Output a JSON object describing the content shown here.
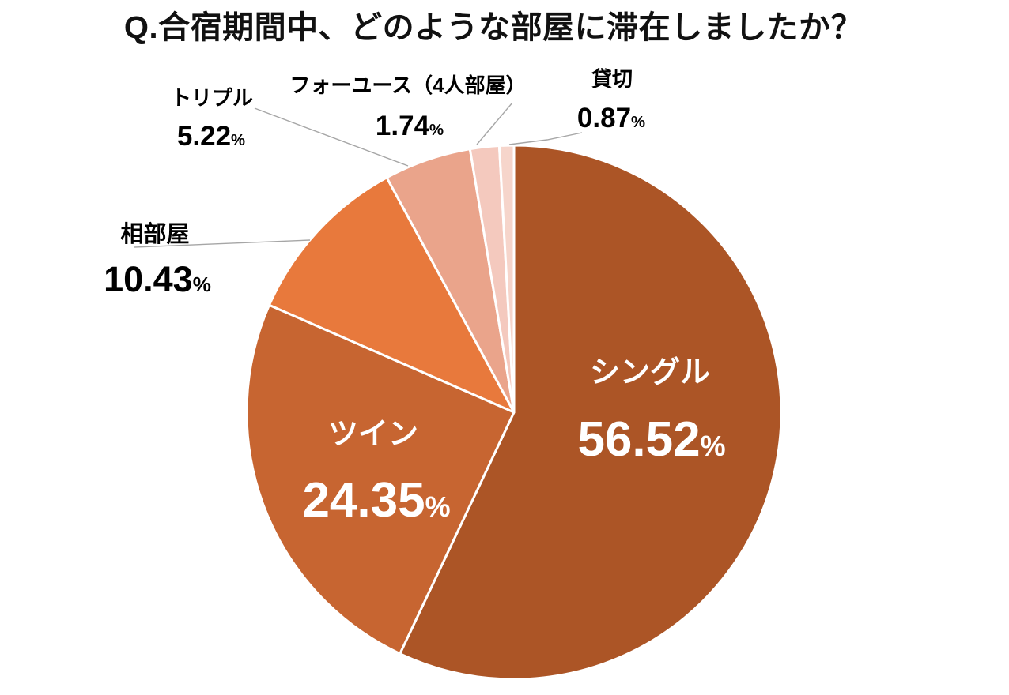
{
  "title": "Q.合宿期間中、どのような部屋に滞在しましたか？",
  "chart_data": {
    "type": "pie",
    "title": "Q.合宿期間中、どのような部屋に滞在しましたか？",
    "unit": "%",
    "start_angle_deg": 0,
    "direction": "clockwise",
    "legend": "none",
    "background_color": "#FFFFFF",
    "divider_color": "#FFFFFF",
    "leader_line_color": "#A6A6A6",
    "slices": [
      {
        "slug": "single",
        "label": "シングル",
        "value": 56.52,
        "value_text": "56.52",
        "color": "#AC5526",
        "label_color": "#FFFFFF",
        "label_position": "inside"
      },
      {
        "slug": "twin",
        "label": "ツイン",
        "value": 24.35,
        "value_text": "24.35",
        "color": "#C76531",
        "label_color": "#FFFFFF",
        "label_position": "inside"
      },
      {
        "slug": "shared-room",
        "label": "相部屋",
        "value": 10.43,
        "value_text": "10.43",
        "color": "#E8793C",
        "label_color": "#000000",
        "label_position": "outside"
      },
      {
        "slug": "triple",
        "label": "トリプル",
        "value": 5.22,
        "value_text": "5.22",
        "color": "#EAA48B",
        "label_color": "#000000",
        "label_position": "outside"
      },
      {
        "slug": "four-use",
        "label": "フォーユース（4人部屋）",
        "value": 1.74,
        "value_text": "1.74",
        "color": "#F4C9BE",
        "label_color": "#000000",
        "label_position": "outside"
      },
      {
        "slug": "private",
        "label": "貸切",
        "value": 0.87,
        "value_text": "0.87",
        "color": "#F6D5CB",
        "label_color": "#000000",
        "label_position": "outside"
      }
    ]
  }
}
